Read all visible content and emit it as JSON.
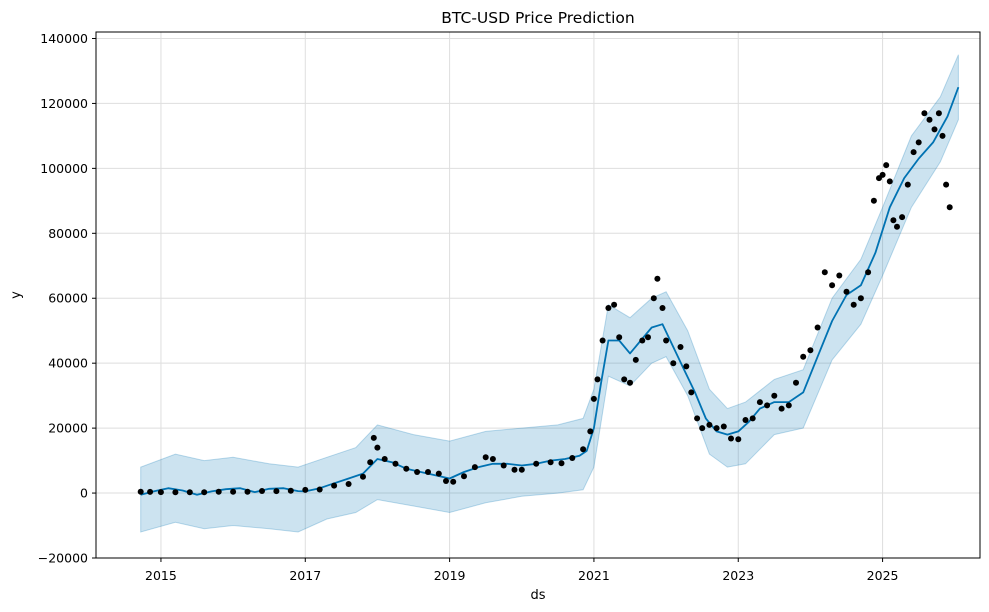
{
  "chart_data": {
    "type": "scatter",
    "title": "BTC-USD Price Prediction",
    "xlabel": "ds",
    "ylabel": "y",
    "xlim": [
      2014.1,
      2026.35
    ],
    "ylim": [
      -20000,
      142000
    ],
    "x_ticks": [
      2015,
      2017,
      2019,
      2021,
      2023,
      2025
    ],
    "x_tick_labels": [
      "2015",
      "2017",
      "2019",
      "2021",
      "2023",
      "2025"
    ],
    "y_ticks": [
      -20000,
      0,
      20000,
      40000,
      60000,
      80000,
      100000,
      120000,
      140000
    ],
    "y_tick_labels": [
      "−20000",
      "0",
      "20000",
      "40000",
      "60000",
      "80000",
      "100000",
      "120000",
      "140000"
    ],
    "grid": true,
    "colors": {
      "observed": "#000000",
      "forecast": "#0072B2",
      "interval": "#0072B2"
    },
    "series": [
      {
        "kind": "scatter",
        "x": [
          2014.72,
          2014.85,
          2015.0,
          2015.2,
          2015.4,
          2015.6,
          2015.8,
          2016.0,
          2016.2,
          2016.4,
          2016.6,
          2016.8,
          2017.0,
          2017.2,
          2017.4,
          2017.6,
          2017.8,
          2017.9,
          2017.95,
          2018.0,
          2018.1,
          2018.25,
          2018.4,
          2018.55,
          2018.7,
          2018.85,
          2018.95,
          2019.05,
          2019.2,
          2019.35,
          2019.5,
          2019.6,
          2019.75,
          2019.9,
          2020.0,
          2020.2,
          2020.4,
          2020.55,
          2020.7,
          2020.85,
          2020.95,
          2021.0,
          2021.05,
          2021.12,
          2021.2,
          2021.28,
          2021.35,
          2021.42,
          2021.5,
          2021.58,
          2021.67,
          2021.75,
          2021.83,
          2021.88,
          2021.95,
          2022.0,
          2022.1,
          2022.2,
          2022.28,
          2022.35,
          2022.43,
          2022.5,
          2022.6,
          2022.7,
          2022.8,
          2022.9,
          2023.0,
          2023.1,
          2023.2,
          2023.3,
          2023.4,
          2023.5,
          2023.6,
          2023.7,
          2023.8,
          2023.9,
          2024.0,
          2024.1,
          2024.2,
          2024.3,
          2024.4,
          2024.5,
          2024.6,
          2024.7,
          2024.8,
          2024.88,
          2024.95,
          2025.0,
          2025.05,
          2025.1,
          2025.15,
          2025.2,
          2025.27,
          2025.35,
          2025.43,
          2025.5,
          2025.58,
          2025.65,
          2025.72,
          2025.78,
          2025.83,
          2025.88,
          2025.93
        ],
        "y": [
          400,
          350,
          300,
          250,
          240,
          230,
          380,
          430,
          420,
          650,
          600,
          710,
          970,
          1100,
          2300,
          2800,
          5000,
          9500,
          17000,
          14000,
          10500,
          9000,
          7500,
          6500,
          6500,
          6000,
          3700,
          3500,
          5200,
          8000,
          11000,
          10500,
          8500,
          7200,
          7200,
          9000,
          9500,
          9200,
          10800,
          13500,
          19000,
          29000,
          35000,
          47000,
          57000,
          58000,
          48000,
          35000,
          34000,
          41000,
          47000,
          48000,
          60000,
          66000,
          57000,
          47000,
          40000,
          45000,
          39000,
          31000,
          23000,
          20000,
          21000,
          20000,
          20500,
          16800,
          16600,
          22500,
          23000,
          28000,
          27000,
          30000,
          26000,
          27000,
          34000,
          42000,
          44000,
          51000,
          68000,
          64000,
          67000,
          62000,
          58000,
          60000,
          68000,
          90000,
          97000,
          98000,
          101000,
          96000,
          84000,
          82000,
          85000,
          95000,
          105000,
          108000,
          117000,
          115000,
          112000,
          117000,
          110000,
          95000,
          88000
        ]
      },
      {
        "kind": "line",
        "name": "",
        "x": [
          2014.72,
          2014.9,
          2015.1,
          2015.3,
          2015.5,
          2015.7,
          2015.9,
          2016.1,
          2016.3,
          2016.5,
          2016.7,
          2016.9,
          2017.0,
          2017.2,
          2017.4,
          2017.6,
          2017.8,
          2018.0,
          2018.2,
          2018.4,
          2018.6,
          2018.8,
          2019.0,
          2019.2,
          2019.4,
          2019.6,
          2019.8,
          2020.0,
          2020.2,
          2020.4,
          2020.6,
          2020.8,
          2020.9,
          2021.0,
          2021.1,
          2021.2,
          2021.35,
          2021.5,
          2021.65,
          2021.8,
          2021.95,
          2022.1,
          2022.25,
          2022.4,
          2022.55,
          2022.7,
          2022.85,
          2023.0,
          2023.15,
          2023.3,
          2023.5,
          2023.7,
          2023.9,
          2024.1,
          2024.3,
          2024.5,
          2024.7,
          2024.9,
          2025.1,
          2025.3,
          2025.5,
          2025.7,
          2025.9,
          2026.05
        ],
        "y": [
          -500,
          500,
          1500,
          800,
          -500,
          500,
          1200,
          1500,
          300,
          1300,
          1500,
          600,
          500,
          1500,
          3000,
          4500,
          6000,
          10500,
          9500,
          7500,
          6500,
          5500,
          4500,
          6500,
          8000,
          9000,
          9000,
          8500,
          9000,
          10000,
          10500,
          11500,
          13000,
          20000,
          34000,
          47000,
          47000,
          43000,
          47000,
          51000,
          52000,
          45000,
          38000,
          31000,
          23000,
          19000,
          18000,
          19000,
          22000,
          26000,
          28000,
          28000,
          31000,
          42000,
          53000,
          61000,
          64000,
          74000,
          88000,
          97000,
          103000,
          108000,
          116000,
          125000
        ]
      },
      {
        "kind": "interval",
        "x": [
          2014.72,
          2015.2,
          2015.6,
          2016.0,
          2016.5,
          2016.9,
          2017.3,
          2017.7,
          2018.0,
          2018.5,
          2019.0,
          2019.5,
          2020.0,
          2020.5,
          2020.85,
          2021.0,
          2021.2,
          2021.5,
          2021.8,
          2022.0,
          2022.3,
          2022.6,
          2022.85,
          2023.1,
          2023.5,
          2023.9,
          2024.3,
          2024.7,
          2025.0,
          2025.4,
          2025.8,
          2026.05
        ],
        "lower": [
          -12000,
          -9000,
          -11000,
          -10000,
          -11000,
          -12000,
          -8000,
          -6000,
          -2000,
          -4000,
          -6000,
          -3000,
          -1000,
          0,
          1000,
          8000,
          36000,
          33000,
          40000,
          42000,
          30000,
          12000,
          8000,
          9000,
          18000,
          20000,
          41000,
          52000,
          67000,
          88000,
          102000,
          115000
        ],
        "upper": [
          8000,
          12000,
          10000,
          11000,
          9000,
          8000,
          11000,
          14000,
          21000,
          18000,
          16000,
          19000,
          20000,
          21000,
          23000,
          32000,
          58000,
          54000,
          60000,
          62000,
          50000,
          32000,
          26000,
          28000,
          35000,
          38000,
          60000,
          72000,
          88000,
          110000,
          122000,
          135000
        ]
      }
    ]
  }
}
